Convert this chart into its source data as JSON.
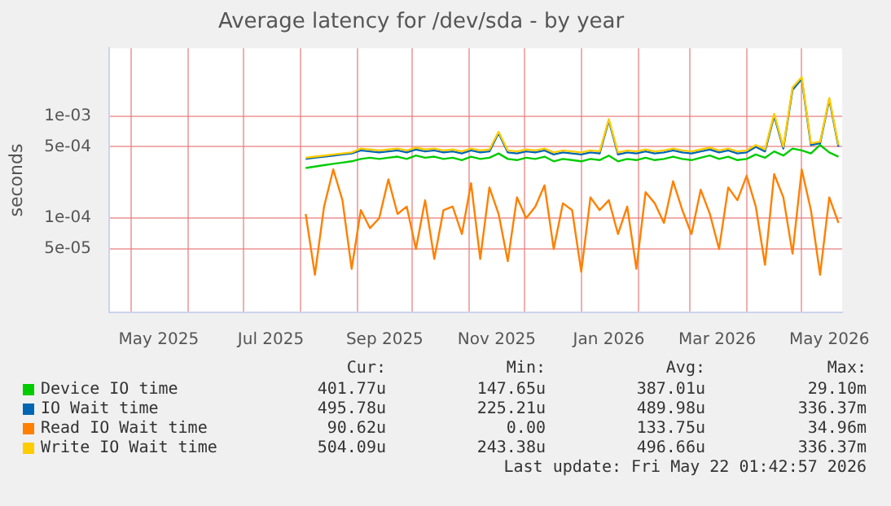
{
  "chart_data": {
    "type": "line",
    "title": "Average latency for /dev/sda - by year",
    "ylabel": "seconds",
    "x": [
      "2025-08-04",
      "2025-08-09",
      "2025-08-14",
      "2025-08-19",
      "2025-08-24",
      "2025-08-29",
      "2025-09-03",
      "2025-09-08",
      "2025-09-13",
      "2025-09-18",
      "2025-09-23",
      "2025-09-28",
      "2025-10-03",
      "2025-10-08",
      "2025-10-13",
      "2025-10-18",
      "2025-10-23",
      "2025-10-28",
      "2025-11-02",
      "2025-11-07",
      "2025-11-12",
      "2025-11-17",
      "2025-11-22",
      "2025-11-27",
      "2025-12-02",
      "2025-12-07",
      "2025-12-12",
      "2025-12-17",
      "2025-12-22",
      "2025-12-27",
      "2026-01-01",
      "2026-01-06",
      "2026-01-11",
      "2026-01-16",
      "2026-01-21",
      "2026-01-26",
      "2026-01-31",
      "2026-02-05",
      "2026-02-10",
      "2026-02-15",
      "2026-02-20",
      "2026-02-25",
      "2026-03-02",
      "2026-03-07",
      "2026-03-12",
      "2026-03-17",
      "2026-03-22",
      "2026-03-27",
      "2026-04-01",
      "2026-04-06",
      "2026-04-11",
      "2026-04-16",
      "2026-04-21",
      "2026-04-26",
      "2026-05-01",
      "2026-05-06",
      "2026-05-11",
      "2026-05-16",
      "2026-05-21"
    ],
    "series": [
      {
        "name": "Device IO time",
        "color": "#00cc00",
        "values": [
          0.00031,
          0.00032,
          0.00033,
          0.00034,
          0.00035,
          0.00036,
          0.00038,
          0.00039,
          0.00038,
          0.00039,
          0.0004,
          0.00038,
          0.00041,
          0.00039,
          0.0004,
          0.00038,
          0.00039,
          0.00037,
          0.0004,
          0.00038,
          0.00039,
          0.00043,
          0.00038,
          0.00037,
          0.00039,
          0.00038,
          0.0004,
          0.00036,
          0.00038,
          0.00037,
          0.00036,
          0.00038,
          0.00037,
          0.00041,
          0.00036,
          0.00038,
          0.00037,
          0.00039,
          0.00037,
          0.00038,
          0.0004,
          0.00038,
          0.00037,
          0.00039,
          0.00041,
          0.00038,
          0.0004,
          0.00037,
          0.00038,
          0.00042,
          0.00039,
          0.00045,
          0.00041,
          0.00048,
          0.00046,
          0.00043,
          0.00052,
          0.00044,
          0.0004
        ]
      },
      {
        "name": "IO Wait time",
        "color": "#0066b3",
        "values": [
          0.00038,
          0.00039,
          0.0004,
          0.00041,
          0.00042,
          0.00043,
          0.00046,
          0.00045,
          0.00044,
          0.00045,
          0.00046,
          0.00044,
          0.00047,
          0.00045,
          0.00046,
          0.00044,
          0.00045,
          0.00043,
          0.00046,
          0.00044,
          0.00045,
          0.00068,
          0.00044,
          0.00043,
          0.00045,
          0.00044,
          0.00046,
          0.00042,
          0.00044,
          0.00043,
          0.00042,
          0.00044,
          0.00043,
          0.0009,
          0.00042,
          0.00044,
          0.00043,
          0.00045,
          0.00043,
          0.00044,
          0.00046,
          0.00044,
          0.00043,
          0.00045,
          0.00047,
          0.00044,
          0.00046,
          0.00043,
          0.00044,
          0.0005,
          0.00045,
          0.001,
          0.00048,
          0.0018,
          0.0023,
          0.00052,
          0.00054,
          0.00145,
          0.0005
        ]
      },
      {
        "name": "Read IO Wait time",
        "color": "#ff8000",
        "values": [
          0.00011,
          2.8e-05,
          0.00013,
          0.0003,
          0.00015,
          3.2e-05,
          0.00012,
          8e-05,
          0.0001,
          0.00024,
          0.00011,
          0.00013,
          5e-05,
          0.00015,
          4e-05,
          0.00012,
          0.00013,
          7e-05,
          0.00022,
          4e-05,
          0.0002,
          0.00011,
          3.8e-05,
          0.00016,
          0.0001,
          0.00013,
          0.00021,
          5e-05,
          0.00014,
          0.00012,
          3e-05,
          0.00016,
          0.00012,
          0.00015,
          7e-05,
          0.00013,
          3.2e-05,
          0.00018,
          0.00014,
          9e-05,
          0.00023,
          0.00012,
          7e-05,
          0.00019,
          0.00011,
          5e-05,
          0.0002,
          0.00015,
          0.00026,
          0.00013,
          3.5e-05,
          0.00027,
          0.00016,
          4.5e-05,
          0.0003,
          0.00012,
          2.8e-05,
          0.00016,
          9e-05
        ]
      },
      {
        "name": "Write IO Wait time",
        "color": "#ffcc00",
        "values": [
          0.00039,
          0.0004,
          0.00041,
          0.00042,
          0.00043,
          0.00044,
          0.00048,
          0.00047,
          0.00046,
          0.00047,
          0.00048,
          0.00046,
          0.00049,
          0.00047,
          0.00048,
          0.00046,
          0.00047,
          0.00045,
          0.00048,
          0.00046,
          0.00047,
          0.0007,
          0.00046,
          0.00045,
          0.00047,
          0.00046,
          0.00048,
          0.00044,
          0.00046,
          0.00045,
          0.00044,
          0.00046,
          0.00045,
          0.00093,
          0.00044,
          0.00046,
          0.00045,
          0.00047,
          0.00045,
          0.00046,
          0.00048,
          0.00046,
          0.00045,
          0.00047,
          0.00049,
          0.00046,
          0.00048,
          0.00045,
          0.00046,
          0.00052,
          0.00047,
          0.00105,
          0.0005,
          0.0019,
          0.0024,
          0.00054,
          0.00056,
          0.0015,
          0.00052
        ]
      }
    ],
    "log": "y",
    "ylim": [
      1.2e-05,
      0.0046
    ],
    "yticks": [
      {
        "value": 5e-05,
        "label": "5e-05"
      },
      {
        "value": 0.0001,
        "label": "1e-04"
      },
      {
        "value": 0.0005,
        "label": "5e-04"
      },
      {
        "value": 0.001,
        "label": "1e-03"
      }
    ],
    "xlim": [
      "2025-04-19",
      "2026-05-23"
    ],
    "xticks": [
      {
        "value": "2025-05-01",
        "label": null
      },
      {
        "value": "2025-05-16",
        "label": "May 2025"
      },
      {
        "value": "2025-06-01",
        "label": null
      },
      {
        "value": "2025-07-01",
        "label": null
      },
      {
        "value": "2025-07-16",
        "label": "Jul 2025"
      },
      {
        "value": "2025-08-01",
        "label": null
      },
      {
        "value": "2025-09-01",
        "label": null
      },
      {
        "value": "2025-09-16",
        "label": "Sep 2025"
      },
      {
        "value": "2025-10-01",
        "label": null
      },
      {
        "value": "2025-11-01",
        "label": null
      },
      {
        "value": "2025-11-16",
        "label": "Nov 2025"
      },
      {
        "value": "2025-12-01",
        "label": null
      },
      {
        "value": "2026-01-01",
        "label": null
      },
      {
        "value": "2026-01-16",
        "label": "Jan 2026"
      },
      {
        "value": "2026-02-01",
        "label": null
      },
      {
        "value": "2026-03-01",
        "label": null
      },
      {
        "value": "2026-03-16",
        "label": "Mar 2026"
      },
      {
        "value": "2026-04-01",
        "label": null
      },
      {
        "value": "2026-05-01",
        "label": null
      },
      {
        "value": "2026-05-16",
        "label": "May 2026"
      }
    ],
    "grid": true,
    "marker": "none",
    "line_style": "solid",
    "legend": "bottom",
    "annotations": [
      "Cur:",
      "Min:",
      "Avg:",
      "Max:",
      "401.77u",
      "147.65u",
      "387.01u",
      "29.10m",
      "495.78u",
      "225.21u",
      "489.98u",
      "336.37m",
      "90.62u",
      "0.00",
      "133.75u",
      "34.96m",
      "504.09u",
      "243.38u",
      "496.66u",
      "336.37m",
      "Last update: Fri May 22 01:42:57 2026"
    ]
  }
}
